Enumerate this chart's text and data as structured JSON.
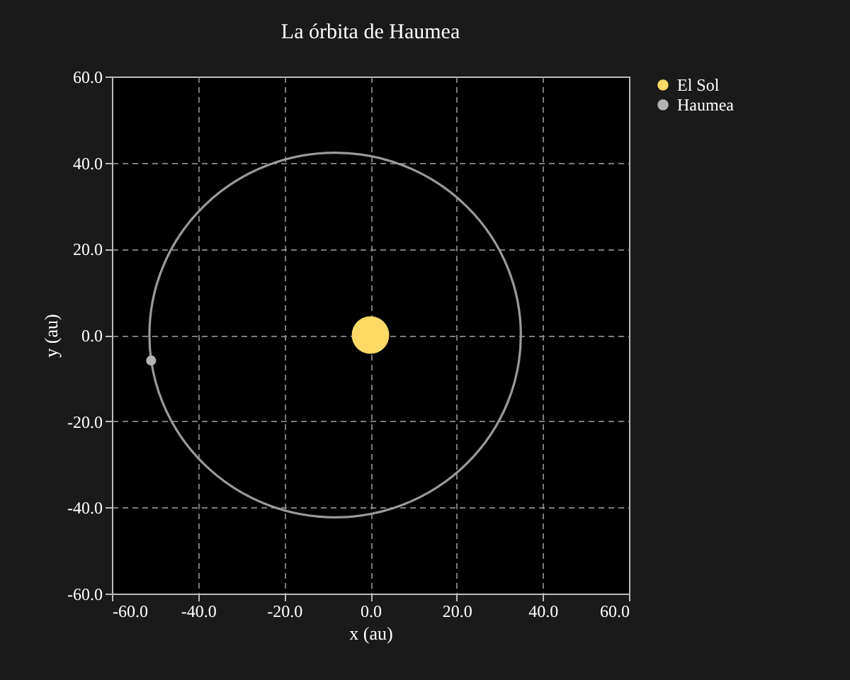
{
  "chart_data": {
    "type": "scatter",
    "title": "La órbita de Haumea",
    "xlabel": "x (au)",
    "ylabel": "y (au)",
    "xlim": [
      -60,
      60
    ],
    "ylim": [
      -60,
      60
    ],
    "xticks": [
      {
        "value": -60,
        "label": "-60.0"
      },
      {
        "value": -40,
        "label": "-40.0"
      },
      {
        "value": -20,
        "label": "-20.0"
      },
      {
        "value": 0,
        "label": "0.0"
      },
      {
        "value": 20,
        "label": "20.0"
      },
      {
        "value": 40,
        "label": "40.0"
      },
      {
        "value": 60,
        "label": "60.0"
      }
    ],
    "yticks": [
      {
        "value": -60,
        "label": "-60.0"
      },
      {
        "value": -40,
        "label": "-40.0"
      },
      {
        "value": -20,
        "label": "-20.0"
      },
      {
        "value": 0,
        "label": "0.0"
      },
      {
        "value": 20,
        "label": "20.0"
      },
      {
        "value": 40,
        "label": "40.0"
      },
      {
        "value": 60,
        "label": "60.0"
      }
    ],
    "grid": true,
    "legend": "top right",
    "series": [
      {
        "marker": "circle",
        "name": "El Sol",
        "color": "#ffd966",
        "x": [
          0
        ],
        "values": [
          0
        ]
      },
      {
        "marker": "circle",
        "name": "Haumea",
        "color": "#b3b3b3",
        "x": [
          -50.9
        ],
        "values": [
          -5.9
        ]
      }
    ]
  }
}
